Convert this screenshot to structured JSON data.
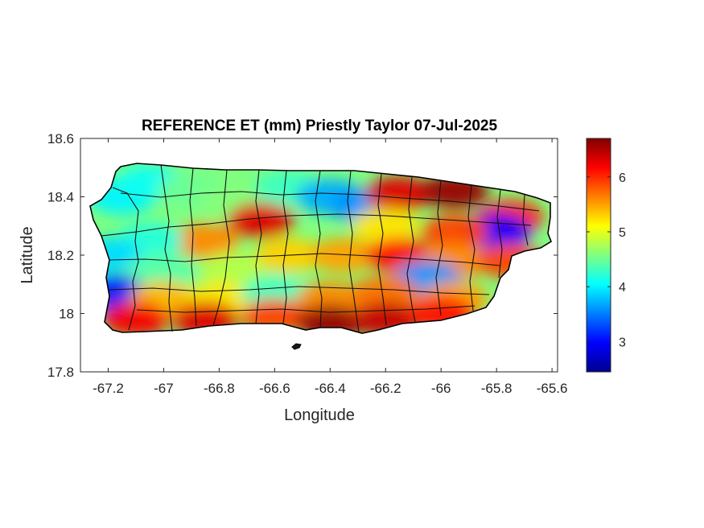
{
  "title": "REFERENCE ET (mm) Priestly Taylor 07-Jul-2025",
  "map": {
    "xlabel": "Longitude",
    "ylabel": "Latitude",
    "xlim": [
      -67.3,
      -65.58
    ],
    "ylim": [
      17.8,
      18.6
    ],
    "xticks": [
      -67.2,
      -67,
      -66.8,
      -66.6,
      -66.4,
      -66.2,
      -66,
      -65.8,
      -65.6
    ],
    "xtick_labels": [
      "-67.2",
      "-67",
      "-66.8",
      "-66.6",
      "-66.4",
      "-66.2",
      "-66",
      "-65.8",
      "-65.6"
    ],
    "yticks": [
      17.8,
      18,
      18.2,
      18.4,
      18.6
    ],
    "ytick_labels": [
      "17.8",
      "18",
      "18.2",
      "18.4",
      "18.6"
    ],
    "colormap": "jet",
    "boundary_color": "#000000",
    "region": "Puerto Rico municipalities"
  },
  "colorbar": {
    "range": [
      2.45,
      6.7
    ],
    "ticks": [
      3,
      4,
      5,
      6
    ],
    "tick_labels": [
      "3",
      "4",
      "5",
      "6"
    ]
  },
  "zones": [
    {
      "lon": -67.15,
      "lat": 18.4,
      "value": 4.0
    },
    {
      "lon": -67.05,
      "lat": 18.45,
      "value": 4.1
    },
    {
      "lon": -66.9,
      "lat": 18.42,
      "value": 4.5
    },
    {
      "lon": -66.75,
      "lat": 18.38,
      "value": 4.6
    },
    {
      "lon": -66.55,
      "lat": 18.43,
      "value": 4.3
    },
    {
      "lon": -66.4,
      "lat": 18.4,
      "value": 3.7
    },
    {
      "lon": -66.28,
      "lat": 18.37,
      "value": 3.6
    },
    {
      "lon": -66.15,
      "lat": 18.41,
      "value": 6.3
    },
    {
      "lon": -65.95,
      "lat": 18.42,
      "value": 6.6
    },
    {
      "lon": -65.75,
      "lat": 18.33,
      "value": 6.0
    },
    {
      "lon": -65.8,
      "lat": 18.28,
      "value": 3.0
    },
    {
      "lon": -65.95,
      "lat": 18.28,
      "value": 5.9
    },
    {
      "lon": -66.2,
      "lat": 18.3,
      "value": 5.2
    },
    {
      "lon": -66.65,
      "lat": 18.32,
      "value": 6.3
    },
    {
      "lon": -66.85,
      "lat": 18.25,
      "value": 5.6
    },
    {
      "lon": -67.05,
      "lat": 18.25,
      "value": 4.2
    },
    {
      "lon": -67.2,
      "lat": 18.2,
      "value": 3.9
    },
    {
      "lon": -67.0,
      "lat": 18.15,
      "value": 4.4
    },
    {
      "lon": -66.75,
      "lat": 18.15,
      "value": 4.8
    },
    {
      "lon": -66.55,
      "lat": 18.2,
      "value": 5.3
    },
    {
      "lon": -66.35,
      "lat": 18.2,
      "value": 5.5
    },
    {
      "lon": -66.15,
      "lat": 18.2,
      "value": 6.1
    },
    {
      "lon": -65.95,
      "lat": 18.18,
      "value": 5.6
    },
    {
      "lon": -65.75,
      "lat": 18.18,
      "value": 5.9
    },
    {
      "lon": -66.05,
      "lat": 18.12,
      "value": 3.6
    },
    {
      "lon": -67.18,
      "lat": 18.07,
      "value": 3.1
    },
    {
      "lon": -67.0,
      "lat": 18.05,
      "value": 5.4
    },
    {
      "lon": -66.8,
      "lat": 18.05,
      "value": 5.2
    },
    {
      "lon": -66.6,
      "lat": 18.07,
      "value": 4.3
    },
    {
      "lon": -66.4,
      "lat": 18.05,
      "value": 5.6
    },
    {
      "lon": -66.2,
      "lat": 18.07,
      "value": 5.7
    },
    {
      "lon": -65.95,
      "lat": 18.05,
      "value": 5.5
    },
    {
      "lon": -67.1,
      "lat": 17.98,
      "value": 6.2
    },
    {
      "lon": -66.85,
      "lat": 17.98,
      "value": 6.3
    },
    {
      "lon": -66.6,
      "lat": 17.99,
      "value": 5.9
    },
    {
      "lon": -66.4,
      "lat": 17.97,
      "value": 6.6
    },
    {
      "lon": -66.2,
      "lat": 17.98,
      "value": 6.4
    },
    {
      "lon": -66.0,
      "lat": 18.0,
      "value": 6.1
    }
  ]
}
